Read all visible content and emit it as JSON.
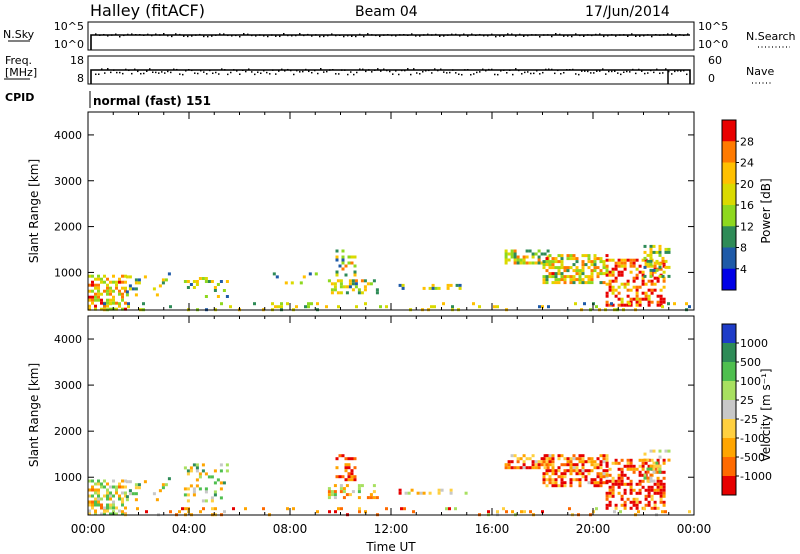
{
  "header": {
    "station": "Halley (fitACF)",
    "beam": "Beam 04",
    "date": "17/Jun/2014"
  },
  "nsky_panel": {
    "left_label": "N.Sky",
    "left_ticks": [
      "10^5",
      "10^0"
    ],
    "right_label": "N.Search",
    "right_ticks": [
      "10^5",
      "10^0"
    ],
    "right_legend_style": "dotted"
  },
  "freq_panel": {
    "left_label_lines": [
      "Freq.",
      "[MHz]"
    ],
    "left_ticks": [
      "18",
      "8"
    ],
    "right_label": "Nave",
    "right_ticks": [
      "60",
      "0"
    ],
    "right_legend_style": "dotted"
  },
  "cpid": {
    "label": "CPID",
    "value": "normal (fast) 151"
  },
  "chart_data": [
    {
      "type": "heatmap",
      "name": "power",
      "ylabel": "Slant Range [km]",
      "yticks": [
        "4000",
        "3000",
        "2000",
        "1000"
      ],
      "ylim": [
        180,
        4500
      ],
      "colorbar_label": "Power [dB]",
      "colorbar_ticks": [
        "28",
        "24",
        "20",
        "16",
        "12",
        "8",
        "4"
      ],
      "colorbar_colors": [
        "#e80000",
        "#ff7a00",
        "#ffc000",
        "#dada00",
        "#8ed81e",
        "#2e8b57",
        "#1e5aa8",
        "#0000e6"
      ],
      "scatter_regions": [
        {
          "t": [
            0.0,
            1.5
          ],
          "r": [
            180,
            950
          ],
          "density": 0.55,
          "bias": 0.55
        },
        {
          "t": [
            1.5,
            3.2
          ],
          "r": [
            500,
            1000
          ],
          "density": 0.25,
          "bias": 0.25
        },
        {
          "t": [
            3.8,
            5.5
          ],
          "r": [
            500,
            900
          ],
          "density": 0.2,
          "bias": 0.2
        },
        {
          "t": [
            7.2,
            9.0
          ],
          "r": [
            800,
            1000
          ],
          "density": 0.15,
          "bias": 0.2
        },
        {
          "t": [
            9.8,
            10.6
          ],
          "r": [
            950,
            1500
          ],
          "density": 0.5,
          "bias": 0.25
        },
        {
          "t": [
            9.5,
            11.5
          ],
          "r": [
            550,
            850
          ],
          "density": 0.45,
          "bias": 0.3
        },
        {
          "t": [
            12.3,
            15.0
          ],
          "r": [
            650,
            750
          ],
          "density": 0.35,
          "bias": 0.25
        },
        {
          "t": [
            16.5,
            18.2
          ],
          "r": [
            1200,
            1500
          ],
          "density": 0.6,
          "bias": 0.3
        },
        {
          "t": [
            18.0,
            20.5
          ],
          "r": [
            800,
            1400
          ],
          "density": 0.6,
          "bias": 0.4
        },
        {
          "t": [
            20.5,
            22.8
          ],
          "r": [
            300,
            1300
          ],
          "density": 0.5,
          "bias": 0.75
        },
        {
          "t": [
            22.0,
            23.0
          ],
          "r": [
            900,
            1600
          ],
          "density": 0.35,
          "bias": 0.3
        },
        {
          "t": [
            0.0,
            24.0
          ],
          "r": [
            180,
            350
          ],
          "density": 0.12,
          "bias": 0.2
        }
      ]
    },
    {
      "type": "heatmap",
      "name": "velocity",
      "ylabel": "Slant Range [km]",
      "yticks": [
        "4000",
        "3000",
        "2000",
        "1000"
      ],
      "ylim": [
        180,
        4500
      ],
      "xlabel": "Time UT",
      "xticks": [
        "00:00",
        "04:00",
        "08:00",
        "12:00",
        "16:00",
        "20:00",
        "00:00"
      ],
      "xlim": [
        0,
        24
      ],
      "colorbar_label": "Velocity [m s⁻¹]",
      "colorbar_ticks": [
        "1000",
        "500",
        "100",
        "25",
        "-25",
        "-100",
        "-500",
        "-1000"
      ],
      "colorbar_colors": [
        "#1e3cc8",
        "#2e8b57",
        "#4fbf4f",
        "#a8e060",
        "#c8c8c8",
        "#ffd040",
        "#ffa500",
        "#ff6a00",
        "#e60000"
      ],
      "scatter_regions": [
        {
          "t": [
            0.0,
            1.5
          ],
          "r": [
            180,
            950
          ],
          "density": 0.55,
          "bias": 0.35
        },
        {
          "t": [
            1.5,
            3.2
          ],
          "r": [
            500,
            1000
          ],
          "density": 0.25,
          "bias": 0.25
        },
        {
          "t": [
            3.8,
            5.5
          ],
          "r": [
            500,
            1300
          ],
          "density": 0.25,
          "bias": 0.25
        },
        {
          "t": [
            9.8,
            10.6
          ],
          "r": [
            950,
            1500
          ],
          "density": 0.5,
          "bias": 0.75
        },
        {
          "t": [
            9.5,
            11.5
          ],
          "r": [
            550,
            850
          ],
          "density": 0.45,
          "bias": 0.45
        },
        {
          "t": [
            12.3,
            15.0
          ],
          "r": [
            650,
            750
          ],
          "density": 0.3,
          "bias": 0.5
        },
        {
          "t": [
            16.5,
            18.2
          ],
          "r": [
            1200,
            1500
          ],
          "density": 0.6,
          "bias": 0.7
        },
        {
          "t": [
            18.0,
            20.5
          ],
          "r": [
            800,
            1500
          ],
          "density": 0.6,
          "bias": 0.7
        },
        {
          "t": [
            20.5,
            22.8
          ],
          "r": [
            300,
            1400
          ],
          "density": 0.5,
          "bias": 0.85
        },
        {
          "t": [
            22.0,
            23.0
          ],
          "r": [
            900,
            1600
          ],
          "density": 0.35,
          "bias": 0.3
        },
        {
          "t": [
            0.0,
            24.0
          ],
          "r": [
            180,
            350
          ],
          "density": 0.12,
          "bias": 0.5
        }
      ]
    }
  ]
}
